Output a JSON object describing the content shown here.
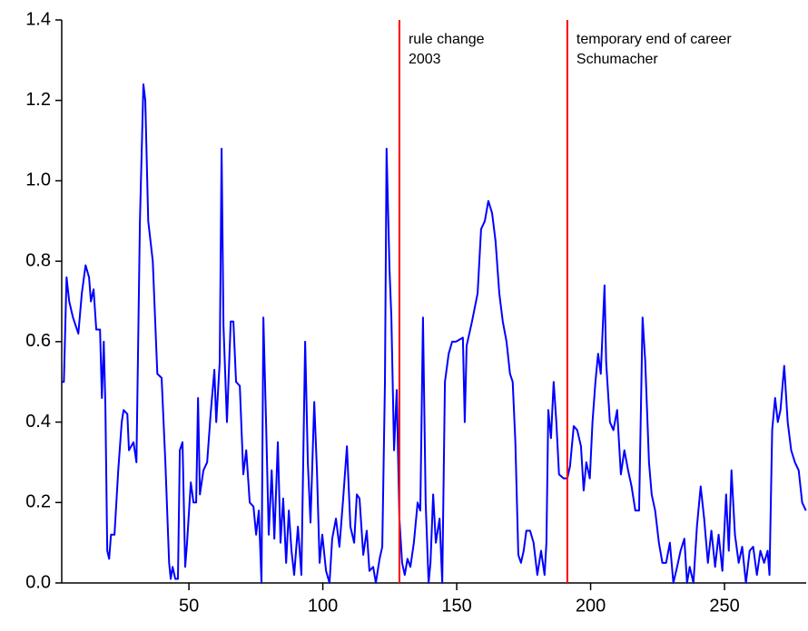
{
  "chart_data": {
    "type": "line",
    "x": [
      2.6,
      3.3,
      4.3,
      5.3,
      6.7,
      8.7,
      10.0,
      11.4,
      12.7,
      13.4,
      14.4,
      15.4,
      16.8,
      17.5,
      18.2,
      18.8,
      19.5,
      20.2,
      20.9,
      22.2,
      23.6,
      24.9,
      25.6,
      27.0,
      27.6,
      29.3,
      30.4,
      31.7,
      33.0,
      33.7,
      34.8,
      36.5,
      38.2,
      39.8,
      41.2,
      42.6,
      43.2,
      43.9,
      44.9,
      45.9,
      46.6,
      47.6,
      48.6,
      49.3,
      50.7,
      51.7,
      52.7,
      53.4,
      54.1,
      55.4,
      56.8,
      58.1,
      59.5,
      60.2,
      61.5,
      62.2,
      62.9,
      64.2,
      65.6,
      66.6,
      67.6,
      69.0,
      70.3,
      71.4,
      72.7,
      74.1,
      75.1,
      76.1,
      77.1,
      77.8,
      78.8,
      79.8,
      80.9,
      81.9,
      83.2,
      84.2,
      85.2,
      86.3,
      87.3,
      88.3,
      89.3,
      90.7,
      92.0,
      93.4,
      94.4,
      95.4,
      96.8,
      97.8,
      98.8,
      99.8,
      101.2,
      102.5,
      103.5,
      104.9,
      106.2,
      107.6,
      109.0,
      110.3,
      111.7,
      112.7,
      113.7,
      115.1,
      116.4,
      117.4,
      118.8,
      119.8,
      121.2,
      122.2,
      123.2,
      123.8,
      124.9,
      125.6,
      126.6,
      127.6,
      128.6,
      129.6,
      130.6,
      131.6,
      132.7,
      134.0,
      135.4,
      136.4,
      137.4,
      138.4,
      139.5,
      140.2,
      141.2,
      142.2,
      143.6,
      144.6,
      145.6,
      147.0,
      148.3,
      149.7,
      152.3,
      153.0,
      153.7,
      155.7,
      157.8,
      159.1,
      160.5,
      161.8,
      163.2,
      164.5,
      165.9,
      167.2,
      168.6,
      169.9,
      170.9,
      171.9,
      173.0,
      174.0,
      175.0,
      176.0,
      177.4,
      178.7,
      180.1,
      181.5,
      182.8,
      183.5,
      184.2,
      185.2,
      186.2,
      187.2,
      188.2,
      189.9,
      191.3,
      192.3,
      193.7,
      195.0,
      196.4,
      197.4,
      198.4,
      199.7,
      200.7,
      201.8,
      202.8,
      203.8,
      205.2,
      205.8,
      207.2,
      208.5,
      209.9,
      211.3,
      212.6,
      214.0,
      215.3,
      216.7,
      218.1,
      219.4,
      220.4,
      221.8,
      222.8,
      224.1,
      225.5,
      226.8,
      228.2,
      229.6,
      230.9,
      232.3,
      233.6,
      235.0,
      236.0,
      237.0,
      238.4,
      239.7,
      241.1,
      242.4,
      243.8,
      245.1,
      246.5,
      247.8,
      249.2,
      250.6,
      251.6,
      252.6,
      253.9,
      255.3,
      256.6,
      258.0,
      259.4,
      260.7,
      262.1,
      263.4,
      264.8,
      266.1,
      266.8,
      267.8,
      268.9,
      269.9,
      270.9,
      272.3,
      273.6,
      274.9,
      276.3,
      277.7,
      279.0,
      280.4
    ],
    "series": [
      {
        "color": "#0000ff",
        "values": [
          0.5,
          0.5,
          0.76,
          0.7,
          0.66,
          0.62,
          0.72,
          0.79,
          0.76,
          0.7,
          0.73,
          0.63,
          0.63,
          0.46,
          0.6,
          0.44,
          0.08,
          0.06,
          0.12,
          0.12,
          0.28,
          0.4,
          0.43,
          0.42,
          0.33,
          0.35,
          0.3,
          0.9,
          1.24,
          1.2,
          0.9,
          0.8,
          0.52,
          0.51,
          0.3,
          0.05,
          0.01,
          0.04,
          0.01,
          0.01,
          0.33,
          0.35,
          0.04,
          0.1,
          0.25,
          0.2,
          0.2,
          0.46,
          0.22,
          0.28,
          0.3,
          0.42,
          0.53,
          0.4,
          0.55,
          1.08,
          0.64,
          0.4,
          0.65,
          0.65,
          0.5,
          0.49,
          0.27,
          0.33,
          0.2,
          0.19,
          0.12,
          0.18,
          0,
          0.66,
          0.4,
          0.12,
          0.28,
          0.11,
          0.35,
          0.1,
          0.21,
          0.05,
          0.18,
          0.08,
          0.02,
          0.14,
          0.02,
          0.6,
          0.3,
          0.15,
          0.45,
          0.28,
          0.05,
          0.12,
          0.03,
          0,
          0.11,
          0.16,
          0.09,
          0.21,
          0.34,
          0.14,
          0.1,
          0.22,
          0.21,
          0.07,
          0.13,
          0.03,
          0.04,
          0,
          0.06,
          0.09,
          0.5,
          1.08,
          0.78,
          0.66,
          0.33,
          0.48,
          0.16,
          0.05,
          0.02,
          0.06,
          0.04,
          0.1,
          0.2,
          0.18,
          0.66,
          0.2,
          0,
          0.05,
          0.22,
          0.1,
          0.16,
          0,
          0.5,
          0.57,
          0.6,
          0.6,
          0.61,
          0.4,
          0.59,
          0.65,
          0.72,
          0.88,
          0.9,
          0.95,
          0.92,
          0.85,
          0.72,
          0.65,
          0.6,
          0.52,
          0.5,
          0.35,
          0.07,
          0.05,
          0.08,
          0.13,
          0.13,
          0.1,
          0.02,
          0.08,
          0.02,
          0.1,
          0.43,
          0.36,
          0.5,
          0.4,
          0.27,
          0.26,
          0.26,
          0.29,
          0.39,
          0.38,
          0.34,
          0.23,
          0.3,
          0.26,
          0.4,
          0.5,
          0.57,
          0.52,
          0.74,
          0.55,
          0.4,
          0.38,
          0.43,
          0.27,
          0.33,
          0.28,
          0.24,
          0.18,
          0.18,
          0.66,
          0.55,
          0.3,
          0.22,
          0.18,
          0.1,
          0.05,
          0.05,
          0.1,
          0,
          0.04,
          0.08,
          0.11,
          0,
          0.04,
          0,
          0.14,
          0.24,
          0.16,
          0.05,
          0.13,
          0.04,
          0.12,
          0.03,
          0.22,
          0.08,
          0.28,
          0.12,
          0.05,
          0.09,
          0,
          0.08,
          0.09,
          0.02,
          0.08,
          0.05,
          0.08,
          0.02,
          0.38,
          0.46,
          0.4,
          0.43,
          0.54,
          0.4,
          0.33,
          0.3,
          0.28,
          0.2,
          0.18
        ]
      }
    ],
    "xlim": [
      2.5,
      280.5
    ],
    "xticks": [
      50,
      100,
      150,
      200,
      250
    ],
    "ylim": [
      0,
      1.4
    ],
    "yticks": [
      {
        "value": 0,
        "label": "0.0"
      },
      0.2,
      0.4,
      0.6,
      0.8,
      {
        "value": 1,
        "label": "1.0"
      },
      1.2,
      1.4
    ],
    "reference_lines": [
      {
        "x": 128.6,
        "color": "#ff0000",
        "label": [
          "rule change",
          "2003"
        ]
      },
      {
        "x": 191.3,
        "color": "#ff0000",
        "label": [
          "temporary end of career",
          "Schumacher"
        ]
      }
    ]
  }
}
